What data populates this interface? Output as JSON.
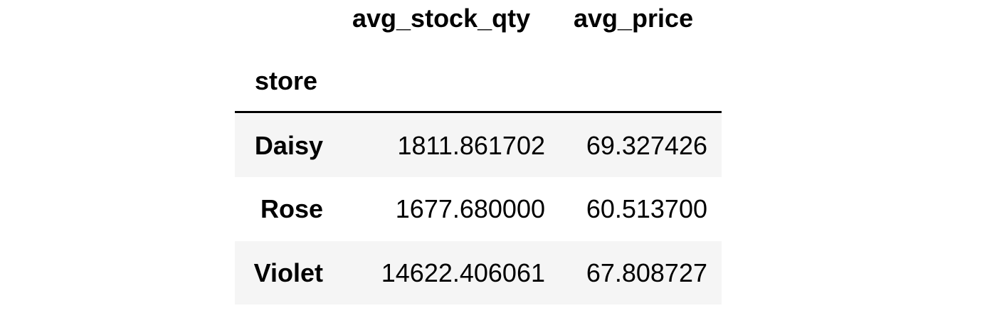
{
  "table": {
    "columns": [
      "avg_stock_qty",
      "avg_price"
    ],
    "index_name": "store",
    "rows": [
      {
        "store": "Daisy",
        "avg_stock_qty": "1811.861702",
        "avg_price": "69.327426"
      },
      {
        "store": "Rose",
        "avg_stock_qty": "1677.680000",
        "avg_price": "60.513700"
      },
      {
        "store": "Violet",
        "avg_stock_qty": "14622.406061",
        "avg_price": "67.808727"
      }
    ]
  },
  "colors": {
    "stripe": "#f5f5f5",
    "text": "#000000",
    "divider": "#000000"
  }
}
